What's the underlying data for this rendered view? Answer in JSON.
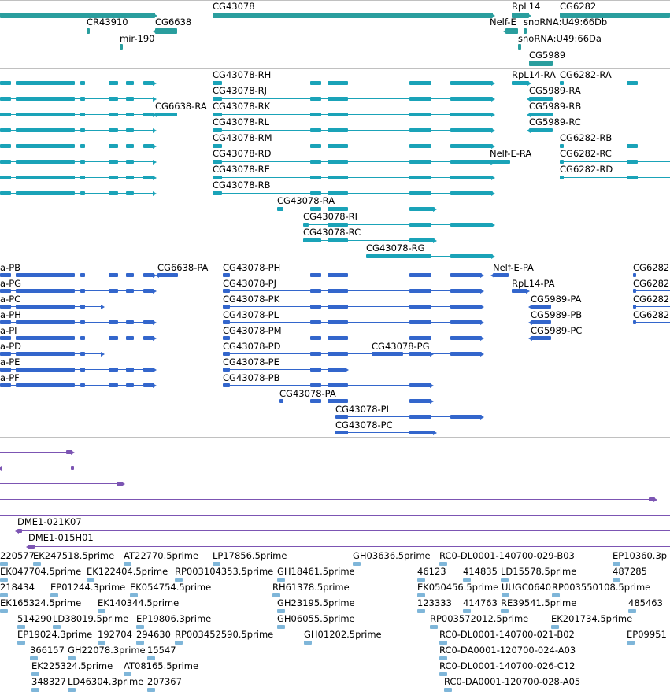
{
  "colors": {
    "gene": "#2a9e9e",
    "tx": "#1aa3b8",
    "cds": "#3366cc",
    "clone": "#7c55b3",
    "est": "#7fb6d9",
    "sep": "#c0c0c0"
  },
  "genes": [
    {
      "label": "CG43078"
    },
    {
      "label": "RpL14"
    },
    {
      "label": "CG6282"
    },
    {
      "label": "CR43910"
    },
    {
      "label": "CG6638"
    },
    {
      "label": "Nelf-E"
    },
    {
      "label": "snoRNA:U49:66Db"
    },
    {
      "label": "mir-190"
    },
    {
      "label": "snoRNA:U49:66Da"
    },
    {
      "label": "CG5989"
    }
  ],
  "transcripts": [
    {
      "label": "CG43078-RH"
    },
    {
      "label": "CG43078-RJ"
    },
    {
      "label": "CG43078-RK"
    },
    {
      "label": "CG43078-RL"
    },
    {
      "label": "CG43078-RM"
    },
    {
      "label": "CG43078-RD"
    },
    {
      "label": "CG43078-RE"
    },
    {
      "label": "CG43078-RB"
    },
    {
      "label": "CG43078-RA"
    },
    {
      "label": "CG43078-RI"
    },
    {
      "label": "CG43078-RC"
    },
    {
      "label": "CG43078-RG"
    },
    {
      "label": "CG6638-RA"
    },
    {
      "label": "RpL14-RA"
    },
    {
      "label": "CG6282-RA"
    },
    {
      "label": "CG5989-RA"
    },
    {
      "label": "CG5989-RB"
    },
    {
      "label": "CG5989-RC"
    },
    {
      "label": "CG6282-RB"
    },
    {
      "label": "Nelf-E-RA"
    },
    {
      "label": "CG6282-RC"
    },
    {
      "label": "CG6282-RD"
    }
  ],
  "proteins": [
    {
      "label": "a-PB"
    },
    {
      "label": "a-PG"
    },
    {
      "label": "a-PC"
    },
    {
      "label": "a-PH"
    },
    {
      "label": "a-PI"
    },
    {
      "label": "a-PD"
    },
    {
      "label": "a-PE"
    },
    {
      "label": "a-PF"
    },
    {
      "label": "CG6638-PA"
    },
    {
      "label": "CG43078-PH"
    },
    {
      "label": "CG43078-PJ"
    },
    {
      "label": "CG43078-PK"
    },
    {
      "label": "CG43078-PL"
    },
    {
      "label": "CG43078-PM"
    },
    {
      "label": "CG43078-PD"
    },
    {
      "label": "CG43078-PG"
    },
    {
      "label": "CG43078-PE"
    },
    {
      "label": "CG43078-PB"
    },
    {
      "label": "CG43078-PA"
    },
    {
      "label": "CG43078-PI"
    },
    {
      "label": "CG43078-PC"
    },
    {
      "label": "Nelf-E-PA"
    },
    {
      "label": "RpL14-PA"
    },
    {
      "label": "CG5989-PA"
    },
    {
      "label": "CG5989-PB"
    },
    {
      "label": "CG5989-PC"
    },
    {
      "label": "CG6282"
    },
    {
      "label": "CG6282"
    },
    {
      "label": "CG6282"
    },
    {
      "label": "CG6282"
    }
  ],
  "clones": [
    {
      "label": "DME1-021K07"
    },
    {
      "label": "DME1-015H01"
    }
  ],
  "ests": [
    {
      "label": "220577"
    },
    {
      "label": "EK247518.5prime"
    },
    {
      "label": "AT22770.5prime"
    },
    {
      "label": "LP17856.5prime"
    },
    {
      "label": "GH03636.5prime"
    },
    {
      "label": "RC0-DL0001-140700-029-B03"
    },
    {
      "label": "EP10360.3p"
    },
    {
      "label": "EK047704.5prime"
    },
    {
      "label": "EK122404.5prime"
    },
    {
      "label": "RP003104353.5prime"
    },
    {
      "label": "GH18461.5prime"
    },
    {
      "label": "46123"
    },
    {
      "label": "414835"
    },
    {
      "label": "LD15578.5prime"
    },
    {
      "label": "487285"
    },
    {
      "label": "218434"
    },
    {
      "label": "EP01244.3prime"
    },
    {
      "label": "EK054754.5prime"
    },
    {
      "label": "RH61378.5prime"
    },
    {
      "label": "EK050456.5prime"
    },
    {
      "label": "UUGC0640"
    },
    {
      "label": "RP003550108.5prime"
    },
    {
      "label": "EK165324.5prime"
    },
    {
      "label": "EK140344.5prime"
    },
    {
      "label": "GH23195.5prime"
    },
    {
      "label": "123333"
    },
    {
      "label": "414763"
    },
    {
      "label": "RE39541.5prime"
    },
    {
      "label": "485463"
    },
    {
      "label": "514290"
    },
    {
      "label": "LD38019.5prime"
    },
    {
      "label": "EP19806.3prime"
    },
    {
      "label": "GH06055.5prime"
    },
    {
      "label": "RP003572012.5prime"
    },
    {
      "label": "EK201734.5prime"
    },
    {
      "label": "EP19024.3prime"
    },
    {
      "label": "192704"
    },
    {
      "label": "294630"
    },
    {
      "label": "RP003452590.5prime"
    },
    {
      "label": "GH01202.5prime"
    },
    {
      "label": "RC0-DL0001-140700-021-B02"
    },
    {
      "label": "EP09951"
    },
    {
      "label": "366157"
    },
    {
      "label": "GH22078.3prime"
    },
    {
      "label": "15547"
    },
    {
      "label": "RC0-DA0001-120700-024-A03"
    },
    {
      "label": "EK225324.5prime"
    },
    {
      "label": "AT08165.5prime"
    },
    {
      "label": "RC0-DL0001-140700-026-C12"
    },
    {
      "label": "348327"
    },
    {
      "label": "LD46304.3prime"
    },
    {
      "label": "207367"
    },
    {
      "label": "RC0-DA0001-120700-028-A05"
    }
  ]
}
